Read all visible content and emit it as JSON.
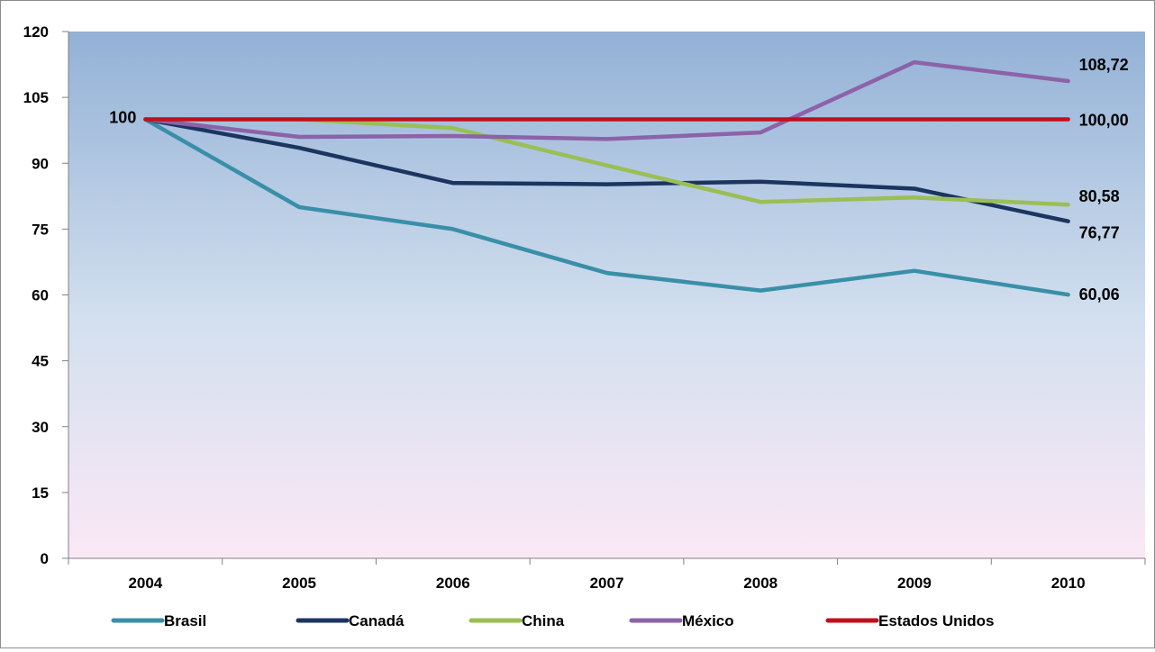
{
  "chart_data": {
    "type": "line",
    "title": "",
    "xlabel": "",
    "ylabel": "",
    "x": [
      "2004",
      "2005",
      "2006",
      "2007",
      "2008",
      "2009",
      "2010"
    ],
    "ylim": [
      0,
      120
    ],
    "yticks": [
      "0",
      "15",
      "30",
      "45",
      "60",
      "75",
      "90",
      "105",
      "120"
    ],
    "grid": false,
    "legend_position": "bottom",
    "series": [
      {
        "name": "Brasil",
        "color": "#3a8fa8",
        "values": [
          100,
          80.0,
          75.0,
          65.0,
          61.0,
          65.5,
          60.06
        ]
      },
      {
        "name": "Canadá",
        "color": "#1b3560",
        "values": [
          100,
          93.5,
          85.5,
          85.2,
          85.8,
          84.2,
          76.77
        ]
      },
      {
        "name": "China",
        "color": "#9bbe55",
        "values": [
          100,
          100,
          98.0,
          89.5,
          81.2,
          82.2,
          80.58
        ]
      },
      {
        "name": "México",
        "color": "#8c62a8",
        "values": [
          100,
          96.0,
          96.2,
          95.5,
          97.0,
          113.0,
          108.72
        ]
      },
      {
        "name": "Estados Unidos",
        "color": "#c0101a",
        "values": [
          100,
          100,
          100,
          100,
          100,
          100,
          100.0
        ]
      }
    ],
    "annotations": [
      {
        "text": "100",
        "series": 4,
        "point": 0,
        "anchor": "end",
        "dx": -10,
        "dy": 4
      },
      {
        "text": "108,72",
        "series": 3,
        "point": 6,
        "anchor": "start",
        "dx": 12,
        "dy": -12
      },
      {
        "text": "100,00",
        "series": 4,
        "point": 6,
        "anchor": "start",
        "dx": 12,
        "dy": 7
      },
      {
        "text": "80,58",
        "series": 2,
        "point": 6,
        "anchor": "start",
        "dx": 12,
        "dy": -3
      },
      {
        "text": "76,77",
        "series": 1,
        "point": 6,
        "anchor": "start",
        "dx": 12,
        "dy": 19
      },
      {
        "text": "60,06",
        "series": 0,
        "point": 6,
        "anchor": "start",
        "dx": 12,
        "dy": 6
      }
    ]
  }
}
